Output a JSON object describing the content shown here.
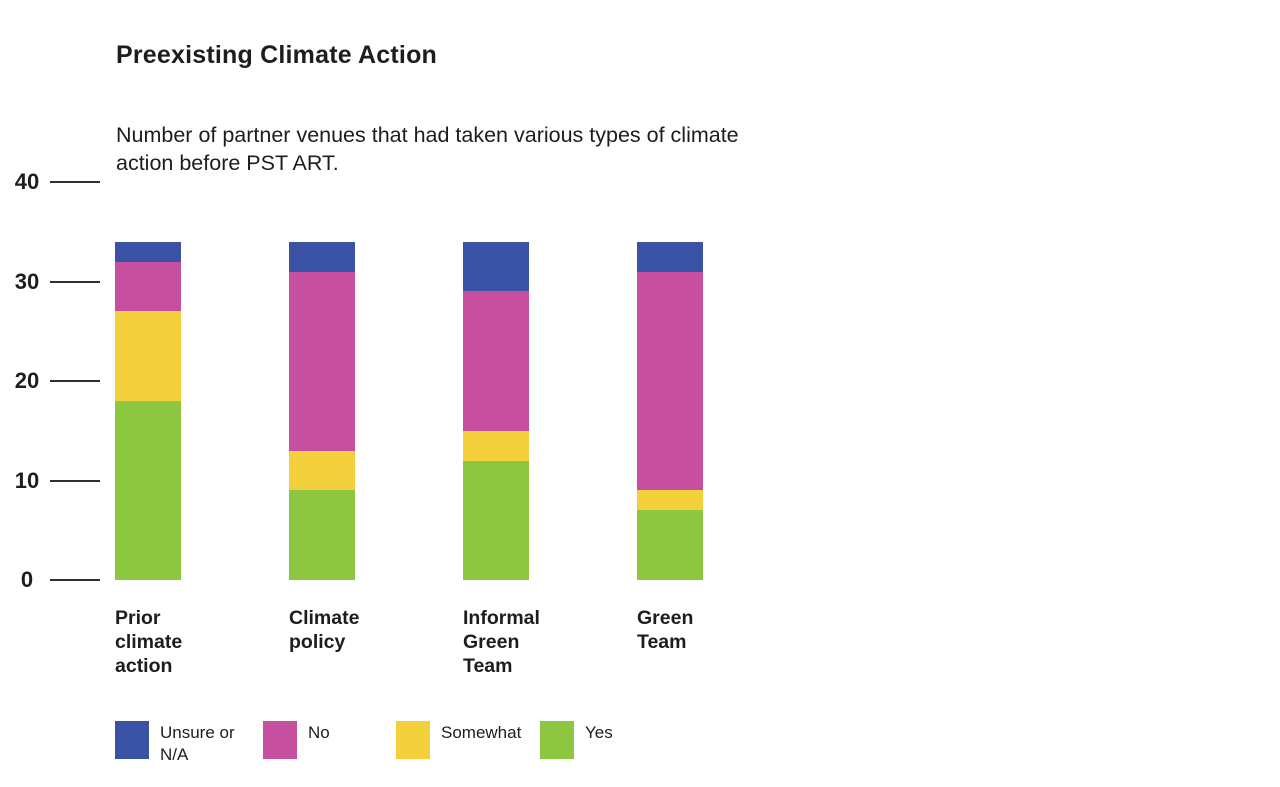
{
  "header": {
    "title": "Preexisting Climate Action",
    "subtitle": "Number of partner venues that had taken various types of climate action before PST ART."
  },
  "colors": {
    "unsure": "#3A53A4",
    "no": "#C6509F",
    "somewhat": "#F5D03D",
    "yes": "#8DC63F",
    "axis_line": "#2F2F2F",
    "text": "#1D1D1D"
  },
  "chart_data": {
    "type": "bar",
    "stacked": true,
    "title": "Preexisting Climate Action",
    "subtitle": "Number of partner venues that had taken various types of climate action before PST ART.",
    "categories": [
      "Prior climate action",
      "Climate policy",
      "Informal Green Team",
      "Green Team"
    ],
    "series": [
      {
        "name": "Yes",
        "color": "#8DC63F",
        "values": [
          18,
          9,
          12,
          7
        ]
      },
      {
        "name": "Somewhat",
        "color": "#F5D03D",
        "values": [
          9,
          4,
          3,
          2
        ]
      },
      {
        "name": "No",
        "color": "#C6509F",
        "values": [
          5,
          18,
          14,
          22
        ]
      },
      {
        "name": "Unsure or N/A",
        "color": "#3A53A4",
        "values": [
          2,
          3,
          5,
          3
        ]
      }
    ],
    "y_ticks": [
      40,
      30,
      20,
      10,
      0
    ],
    "ylim": [
      0,
      40
    ],
    "grid": false,
    "legend_position": "bottom",
    "legend": [
      {
        "label": "Unsure or N/A",
        "color": "#3A53A4"
      },
      {
        "label": "No",
        "color": "#C6509F"
      },
      {
        "label": "Somewhat",
        "color": "#F5D03D"
      },
      {
        "label": "Yes",
        "color": "#8DC63F"
      }
    ]
  }
}
